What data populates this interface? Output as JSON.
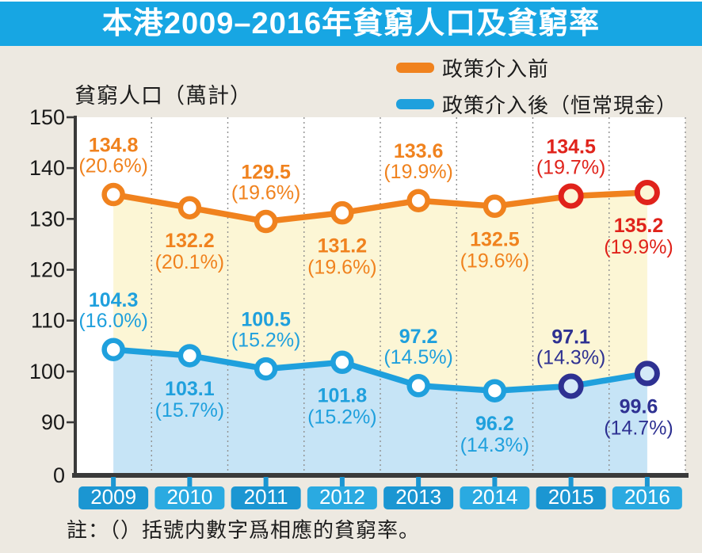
{
  "title": "本港2009–2016年貧窮人口及貧窮率",
  "y_axis_label": "貧窮人口（萬計）",
  "note": "註：（）括號内數字爲相應的貧窮率。",
  "legend": {
    "items": [
      {
        "label": "政策介入前",
        "color": "#F0821E"
      },
      {
        "label": "政策介入後（恒常現金）",
        "color": "#1FA0DD"
      }
    ]
  },
  "colors": {
    "page_background": "#EDE9E1",
    "title_bar": "#17A6E3",
    "plot_background": "#FFFFFF",
    "axis": "#3a3a3a",
    "gridline": "#909090",
    "area_between_lines": "#FCF6D5",
    "area_below_after_line": "#C6E4F6",
    "highlight_red": "#E0231B",
    "highlight_navy": "#2E3192",
    "year_box_dark": "#1b96d2",
    "year_box_light": "#2aaae1",
    "year_text": "#ffffff",
    "tick_label": "#1a1a1a"
  },
  "chart_data": {
    "type": "line",
    "title": "本港2009–2016年貧窮人口及貧窮率",
    "xlabel": "",
    "ylabel": "貧窮人口（萬計）",
    "categories": [
      "2009",
      "2010",
      "2011",
      "2012",
      "2013",
      "2014",
      "2015",
      "2016"
    ],
    "yticks": [
      0,
      90,
      100,
      110,
      120,
      130,
      140,
      150
    ],
    "ylim": [
      0,
      150
    ],
    "axis_note": "y axis compressed between 0 and 90",
    "grid": "vertical dotted",
    "legend_position": "top-right",
    "series": [
      {
        "name": "政策介入前",
        "color": "#F0821E",
        "highlight_color": "#E0231B",
        "highlight_years": [
          "2015",
          "2016"
        ],
        "area_fill": "#FCF6D5",
        "area_fill_extent": "down to after-policy line",
        "values": [
          134.8,
          132.2,
          129.5,
          131.2,
          133.6,
          132.5,
          134.5,
          135.2
        ],
        "rate_labels": [
          "(20.6%)",
          "(20.1%)",
          "(19.6%)",
          "(19.6%)",
          "(19.9%)",
          "(19.6%)",
          "(19.7%)",
          "(19.9%)"
        ],
        "label_side": [
          "above",
          "below",
          "above",
          "below",
          "above",
          "below",
          "above",
          "below"
        ]
      },
      {
        "name": "政策介入後（恒常現金）",
        "color": "#1FA0DD",
        "highlight_color": "#2E3192",
        "highlight_years": [
          "2015",
          "2016"
        ],
        "area_fill": "#C6E4F6",
        "area_fill_extent": "down to x axis",
        "values": [
          104.3,
          103.1,
          100.5,
          101.8,
          97.2,
          96.2,
          97.1,
          99.6
        ],
        "rate_labels": [
          "(16.0%)",
          "(15.7%)",
          "(15.2%)",
          "(15.2%)",
          "(14.5%)",
          "(14.3%)",
          "(14.3%)",
          "(14.7%)"
        ],
        "label_side": [
          "above",
          "below",
          "above",
          "below",
          "above",
          "below",
          "above",
          "below"
        ]
      }
    ]
  }
}
